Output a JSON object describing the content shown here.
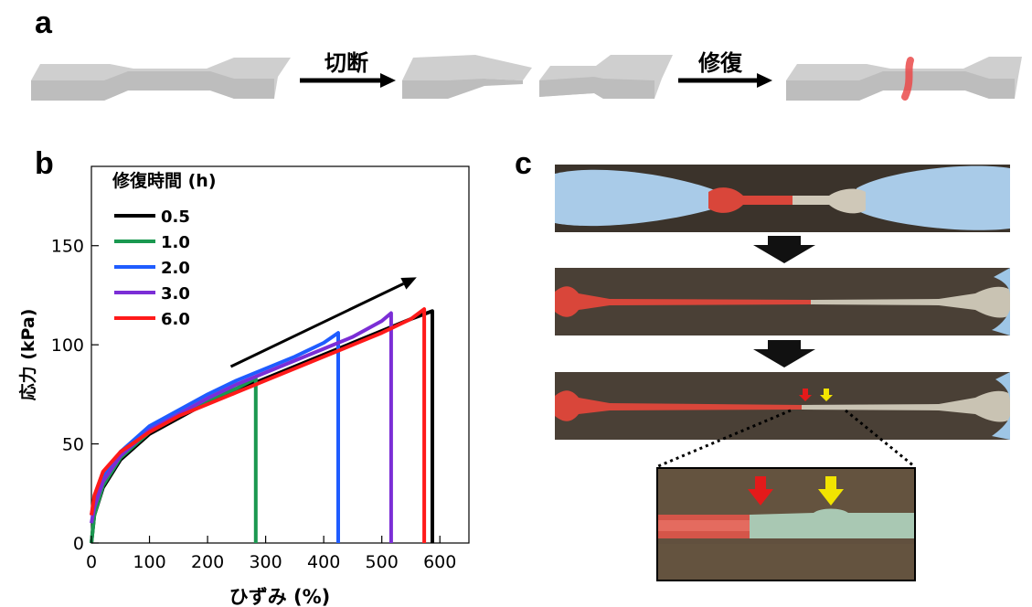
{
  "panels": {
    "a": "a",
    "b": "b",
    "c": "c"
  },
  "panel_a": {
    "cut_label": "切断",
    "repair_label": "修復",
    "colors": {
      "sample_fill": "#cfcfcf",
      "sample_side": "#bdbdbd",
      "repaired_mark": "#ea4a4a"
    }
  },
  "panel_c": {
    "colors": {
      "red_part": "#d9463a",
      "clear_part": "#c9c3b3",
      "background": "#3e352c",
      "glove": "#9ec6e6",
      "arrow_down": "#111111",
      "red_arrow": "#e41a1a",
      "yellow_arrow": "#f2e400"
    }
  },
  "chart_data": {
    "type": "line",
    "xlabel": "ひずみ (%)",
    "ylabel": "応力 (kPa)",
    "xlim": [
      0,
      650
    ],
    "ylim": [
      0,
      190
    ],
    "xticks": [
      0,
      100,
      200,
      300,
      400,
      500,
      600
    ],
    "yticks": [
      0,
      50,
      100,
      150
    ],
    "grid": false,
    "legend": {
      "title": "修復時間 (h)",
      "placement": "top-left"
    },
    "series": [
      {
        "name": "0.5",
        "color": "#000000",
        "x": [
          0,
          5,
          20,
          50,
          100,
          150,
          200,
          250,
          300,
          350,
          400,
          450,
          500,
          550,
          587,
          587
        ],
        "y": [
          0,
          14,
          28,
          42,
          55,
          63,
          71,
          77,
          83,
          89,
          95,
          101,
          107,
          113,
          117,
          0
        ]
      },
      {
        "name": "1.0",
        "color": "#1a9850",
        "x": [
          0,
          5,
          20,
          50,
          100,
          150,
          200,
          250,
          283,
          283
        ],
        "y": [
          0,
          14,
          29,
          43,
          56,
          64,
          72,
          78,
          83,
          0
        ]
      },
      {
        "name": "2.0",
        "color": "#1f5cff",
        "x": [
          0,
          5,
          20,
          50,
          100,
          150,
          200,
          250,
          300,
          350,
          400,
          425,
          425
        ],
        "y": [
          14,
          22,
          34,
          46,
          59,
          67,
          75,
          82,
          88,
          94,
          101,
          106,
          0
        ]
      },
      {
        "name": "3.0",
        "color": "#7b2ed6",
        "x": [
          0,
          5,
          20,
          50,
          100,
          150,
          200,
          250,
          300,
          350,
          400,
          450,
          500,
          516,
          516
        ],
        "y": [
          10,
          18,
          31,
          44,
          57,
          65,
          73,
          80,
          86,
          92,
          98,
          104,
          112,
          116,
          0
        ]
      },
      {
        "name": "6.0",
        "color": "#ff1a1a",
        "x": [
          0,
          5,
          20,
          50,
          100,
          150,
          200,
          250,
          300,
          350,
          400,
          450,
          500,
          550,
          573,
          573
        ],
        "y": [
          14,
          24,
          36,
          46,
          56,
          64,
          70,
          76,
          82,
          88,
          94,
          100,
          106,
          113,
          118,
          0
        ]
      }
    ],
    "annotations": [
      {
        "type": "arrow",
        "from": [
          240,
          89
        ],
        "to": [
          560,
          134
        ]
      }
    ]
  }
}
